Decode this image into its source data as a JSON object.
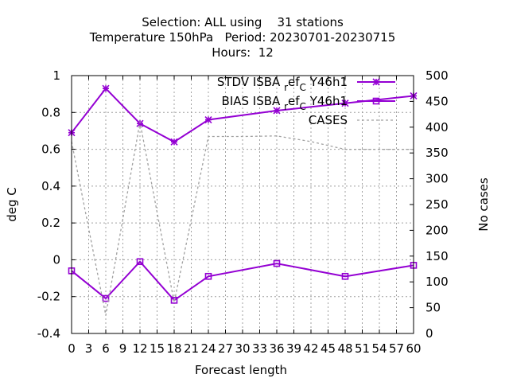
{
  "title": {
    "line1": "Selection: ALL using    31 stations",
    "line2": "Temperature 150hPa   Period: 20230701-20230715",
    "line3": "Hours:  12"
  },
  "chart_data": {
    "type": "line",
    "xlabel": "Forecast length",
    "ylabel": "deg C",
    "y2label": "No cases",
    "xlim": [
      0,
      60
    ],
    "ylim": [
      -0.4,
      1.0
    ],
    "y2lim": [
      0,
      500
    ],
    "x_ticks": [
      "0",
      "3",
      "6",
      "9",
      "12",
      "15",
      "18",
      "21",
      "24",
      "27",
      "30",
      "33",
      "36",
      "39",
      "42",
      "45",
      "48",
      "51",
      "54",
      "57",
      "60"
    ],
    "y_ticks": [
      "-0.4",
      "-0.2",
      "0",
      "0.2",
      "0.4",
      "0.6",
      "0.8",
      "1"
    ],
    "y2_ticks": [
      "0",
      "50",
      "100",
      "150",
      "200",
      "250",
      "300",
      "350",
      "400",
      "450",
      "500"
    ],
    "grid": true,
    "legend_position": "top-right",
    "series": [
      {
        "name": "STDV ISBA_ref_C_Y46h1",
        "legend_text": "STDV ISBA",
        "legend_sub1": "r",
        "legend_mid": "ef",
        "legend_sub2": "C",
        "legend_tail": "Y46h1",
        "axis": "y",
        "marker": "star",
        "color": "#9400d3",
        "x": [
          0,
          6,
          12,
          18,
          24,
          36,
          48,
          60
        ],
        "y": [
          0.69,
          0.93,
          0.74,
          0.64,
          0.76,
          0.81,
          0.85,
          0.89
        ]
      },
      {
        "name": "BIAS ISBA_ref_C_Y46h1",
        "legend_text": "BIAS ISBA",
        "legend_sub1": "r",
        "legend_mid": "ef",
        "legend_sub2": "C",
        "legend_tail": "Y46h1",
        "axis": "y",
        "marker": "square",
        "color": "#9400d3",
        "x": [
          0,
          6,
          12,
          18,
          24,
          36,
          48,
          60
        ],
        "y": [
          -0.06,
          -0.21,
          -0.01,
          -0.22,
          -0.09,
          -0.02,
          -0.09,
          -0.03
        ]
      },
      {
        "name": "CASES",
        "legend_text": "CASES",
        "axis": "y2",
        "marker": "none",
        "color": "#a0a0a0",
        "dashed": true,
        "x": [
          0,
          6,
          12,
          18,
          24,
          30,
          36,
          42,
          48,
          54,
          60
        ],
        "y": [
          372,
          35,
          410,
          60,
          382,
          382,
          383,
          372,
          357,
          357,
          357
        ]
      }
    ]
  }
}
